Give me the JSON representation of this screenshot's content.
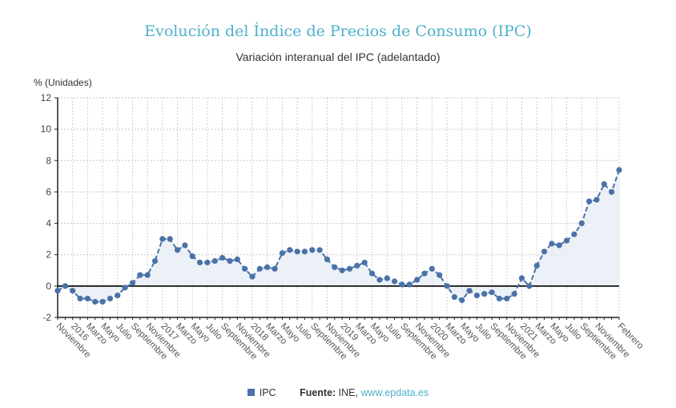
{
  "header": {
    "title": "Evolución del Índice de Precios de Consumo (IPC)",
    "subtitle": "Variación interanual del IPC (adelantado)"
  },
  "legend": {
    "series_label": "IPC",
    "source_label": "Fuente:",
    "source_text": " INE, ",
    "source_link": "www.epdata.es"
  },
  "colors": {
    "title": "#4eb1cb",
    "series": "#4a72a8",
    "area": "#e9eef6",
    "link": "#4eb1cb"
  },
  "chart_data": {
    "type": "line",
    "title": "Evolución del Índice de Precios de Consumo (IPC)",
    "subtitle": "Variación interanual del IPC (adelantado)",
    "ylabel": "% (Unidades)",
    "xlabel": "",
    "ylim": [
      -2,
      12
    ],
    "yticks": [
      -2,
      0,
      2,
      4,
      6,
      8,
      10,
      12
    ],
    "grid": true,
    "legend_position": "bottom-center",
    "x": [
      "Nov 2015",
      "Dic 2015",
      "Ene 2016",
      "Feb 2016",
      "Mar 2016",
      "Abr 2016",
      "May 2016",
      "Jun 2016",
      "Jul 2016",
      "Ago 2016",
      "Sep 2016",
      "Oct 2016",
      "Nov 2016",
      "Dic 2016",
      "Ene 2017",
      "Feb 2017",
      "Mar 2017",
      "Abr 2017",
      "May 2017",
      "Jun 2017",
      "Jul 2017",
      "Ago 2017",
      "Sep 2017",
      "Oct 2017",
      "Nov 2017",
      "Dic 2017",
      "Ene 2018",
      "Feb 2018",
      "Mar 2018",
      "Abr 2018",
      "May 2018",
      "Jun 2018",
      "Jul 2018",
      "Ago 2018",
      "Sep 2018",
      "Oct 2018",
      "Nov 2018",
      "Dic 2018",
      "Ene 2019",
      "Feb 2019",
      "Mar 2019",
      "Abr 2019",
      "May 2019",
      "Jun 2019",
      "Jul 2019",
      "Ago 2019",
      "Sep 2019",
      "Oct 2019",
      "Nov 2019",
      "Dic 2019",
      "Ene 2020",
      "Feb 2020",
      "Mar 2020",
      "Abr 2020",
      "May 2020",
      "Jun 2020",
      "Jul 2020",
      "Ago 2020",
      "Sep 2020",
      "Oct 2020",
      "Nov 2020",
      "Dic 2020",
      "Ene 2021",
      "Feb 2021",
      "Mar 2021",
      "Abr 2021",
      "May 2021",
      "Jun 2021",
      "Jul 2021",
      "Ago 2021",
      "Sep 2021",
      "Oct 2021",
      "Nov 2021",
      "Dic 2021",
      "Ene 2022",
      "Feb 2022"
    ],
    "x_tick_labels": [
      {
        "index": 0,
        "label": "Noviembre"
      },
      {
        "index": 2,
        "label": "2016"
      },
      {
        "index": 4,
        "label": "Marzo"
      },
      {
        "index": 6,
        "label": "Mayo"
      },
      {
        "index": 8,
        "label": "Julio"
      },
      {
        "index": 10,
        "label": "Septiembre"
      },
      {
        "index": 12,
        "label": "Noviembre"
      },
      {
        "index": 14,
        "label": "2017"
      },
      {
        "index": 16,
        "label": "Marzo"
      },
      {
        "index": 18,
        "label": "Mayo"
      },
      {
        "index": 20,
        "label": "Julio"
      },
      {
        "index": 22,
        "label": "Septiembre"
      },
      {
        "index": 24,
        "label": "Noviembre"
      },
      {
        "index": 26,
        "label": "2018"
      },
      {
        "index": 28,
        "label": "Marzo"
      },
      {
        "index": 30,
        "label": "Mayo"
      },
      {
        "index": 32,
        "label": "Julio"
      },
      {
        "index": 34,
        "label": "Septiembre"
      },
      {
        "index": 36,
        "label": "Noviembre"
      },
      {
        "index": 38,
        "label": "2019"
      },
      {
        "index": 40,
        "label": "Marzo"
      },
      {
        "index": 42,
        "label": "Mayo"
      },
      {
        "index": 44,
        "label": "Julio"
      },
      {
        "index": 46,
        "label": "Septiembre"
      },
      {
        "index": 48,
        "label": "Noviembre"
      },
      {
        "index": 50,
        "label": "2020"
      },
      {
        "index": 52,
        "label": "Marzo"
      },
      {
        "index": 54,
        "label": "Mayo"
      },
      {
        "index": 56,
        "label": "Julio"
      },
      {
        "index": 58,
        "label": "Septiembre"
      },
      {
        "index": 60,
        "label": "Noviembre"
      },
      {
        "index": 62,
        "label": "2021"
      },
      {
        "index": 64,
        "label": "Marzo"
      },
      {
        "index": 66,
        "label": "Mayo"
      },
      {
        "index": 68,
        "label": "Julio"
      },
      {
        "index": 70,
        "label": "Septiembre"
      },
      {
        "index": 72,
        "label": "Noviembre"
      },
      {
        "index": 75,
        "label": "Febrero"
      }
    ],
    "series": [
      {
        "name": "IPC",
        "values": [
          -0.3,
          0.0,
          -0.3,
          -0.8,
          -0.8,
          -1.0,
          -1.0,
          -0.8,
          -0.6,
          -0.1,
          0.2,
          0.7,
          0.7,
          1.6,
          3.0,
          3.0,
          2.3,
          2.6,
          1.9,
          1.5,
          1.5,
          1.6,
          1.8,
          1.6,
          1.7,
          1.1,
          0.6,
          1.1,
          1.2,
          1.1,
          2.1,
          2.3,
          2.2,
          2.2,
          2.3,
          2.3,
          1.7,
          1.2,
          1.0,
          1.1,
          1.3,
          1.5,
          0.8,
          0.4,
          0.5,
          0.3,
          0.1,
          0.1,
          0.4,
          0.8,
          1.1,
          0.7,
          0.0,
          -0.7,
          -0.9,
          -0.3,
          -0.6,
          -0.5,
          -0.4,
          -0.8,
          -0.8,
          -0.5,
          0.5,
          0.0,
          1.3,
          2.2,
          2.7,
          2.6,
          2.9,
          3.3,
          4.0,
          5.4,
          5.5,
          6.5,
          6.0,
          7.4
        ]
      }
    ]
  }
}
